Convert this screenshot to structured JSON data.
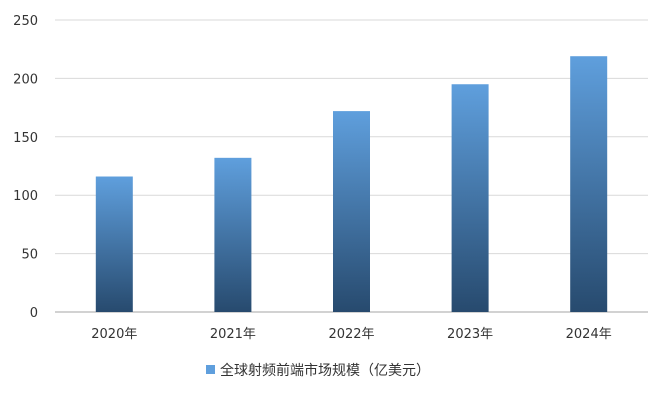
{
  "chart_data": {
    "type": "bar",
    "categories": [
      "2020年",
      "2021年",
      "2022年",
      "2023年",
      "2024年"
    ],
    "series": [
      {
        "name": "全球射频前端市场规模（亿美元）",
        "values": [
          116,
          132,
          172,
          195,
          219
        ]
      }
    ],
    "ylim": [
      0,
      250
    ],
    "yticks": [
      0,
      50,
      100,
      150,
      200,
      250
    ],
    "grid": true,
    "legend_position": "bottom",
    "colors": {
      "bar_top": "#5f9fdd",
      "bar_bottom": "#274a6e",
      "grid": "#d9d9d9",
      "axis": "#a6a6a6"
    }
  }
}
